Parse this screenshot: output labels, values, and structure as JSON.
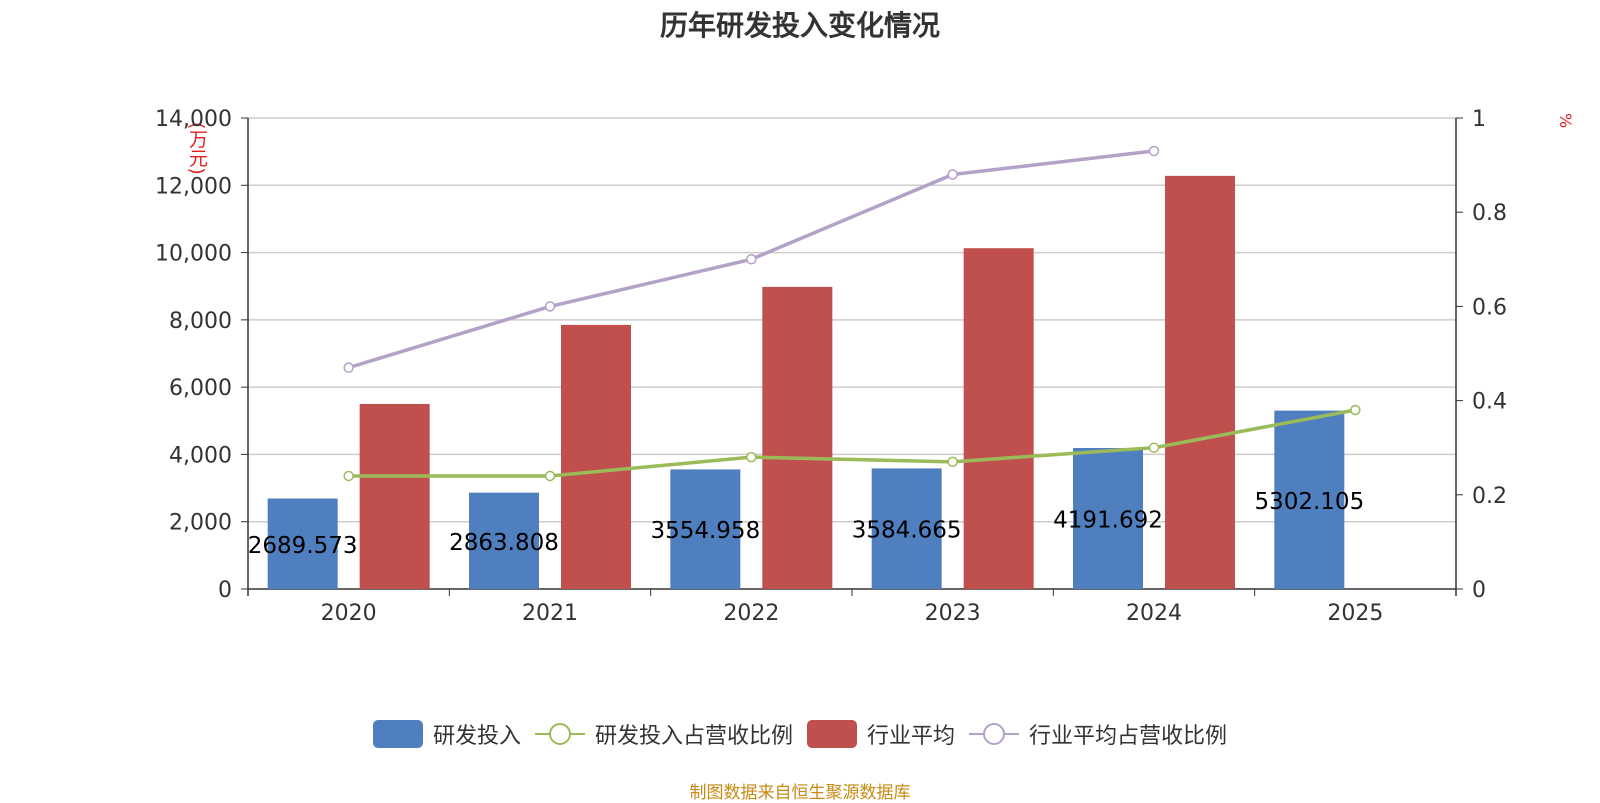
{
  "chart_data": {
    "type": "bar",
    "title": "历年研发投入变化情况",
    "categories": [
      "2020",
      "2021",
      "2022",
      "2023",
      "2024",
      "2025"
    ],
    "y_left": {
      "unit": "(万元)",
      "min": 0,
      "max": 14000,
      "ticks": [
        "0",
        "2,000",
        "4,000",
        "6,000",
        "8,000",
        "10,000",
        "12,000",
        "14,000"
      ]
    },
    "y_right": {
      "unit": "%",
      "min": 0,
      "max": 1,
      "ticks": [
        "0",
        "0.2",
        "0.4",
        "0.6",
        "0.8",
        "1"
      ]
    },
    "series": [
      {
        "name": "研发投入",
        "type": "bar",
        "axis": "left",
        "color": "#4f7fbf",
        "values": [
          2689.573,
          2863.808,
          3554.958,
          3584.665,
          4191.692,
          5302.105
        ],
        "labels": [
          "2689.573",
          "2863.808",
          "3554.958",
          "3584.665",
          "4191.692",
          "5302.105"
        ]
      },
      {
        "name": "研发投入占营收比例",
        "type": "line",
        "axis": "right",
        "color": "#9bbb59",
        "values": [
          0.24,
          0.24,
          0.28,
          0.27,
          0.3,
          0.38
        ]
      },
      {
        "name": "行业平均",
        "type": "bar",
        "axis": "left",
        "color": "#c0504d",
        "values": [
          5500,
          7850,
          8980,
          10130,
          12280,
          null
        ]
      },
      {
        "name": "行业平均占营收比例",
        "type": "line",
        "axis": "right",
        "color": "#b3a2c7",
        "values": [
          0.47,
          0.6,
          0.7,
          0.88,
          0.93,
          null
        ]
      }
    ],
    "grid": true,
    "legend_position": "bottom"
  },
  "footer": {
    "source": "制图数据来自恒生聚源数据库"
  }
}
